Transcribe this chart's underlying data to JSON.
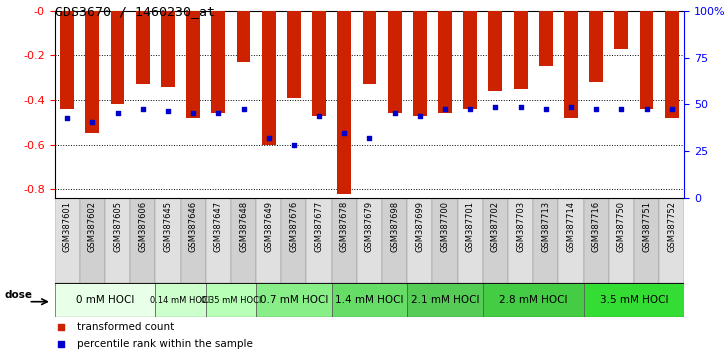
{
  "title": "GDS3670 / 1460230_at",
  "samples": [
    "GSM387601",
    "GSM387602",
    "GSM387605",
    "GSM387606",
    "GSM387645",
    "GSM387646",
    "GSM387647",
    "GSM387648",
    "GSM387649",
    "GSM387676",
    "GSM387677",
    "GSM387678",
    "GSM387679",
    "GSM387698",
    "GSM387699",
    "GSM387700",
    "GSM387701",
    "GSM387702",
    "GSM387703",
    "GSM387713",
    "GSM387714",
    "GSM387716",
    "GSM387750",
    "GSM387751",
    "GSM387752"
  ],
  "red_values": [
    -0.44,
    -0.55,
    -0.42,
    -0.33,
    -0.34,
    -0.48,
    -0.46,
    -0.23,
    -0.6,
    -0.39,
    -0.47,
    -0.82,
    -0.33,
    -0.46,
    -0.47,
    -0.46,
    -0.44,
    -0.36,
    -0.35,
    -0.25,
    -0.48,
    -0.32,
    -0.17,
    -0.44,
    -0.48
  ],
  "blue_values": [
    -0.48,
    -0.5,
    -0.46,
    -0.44,
    -0.45,
    -0.46,
    -0.46,
    -0.44,
    -0.57,
    -0.6,
    -0.47,
    -0.55,
    -0.57,
    -0.46,
    -0.47,
    -0.44,
    -0.44,
    -0.43,
    -0.43,
    -0.44,
    -0.43,
    -0.44,
    -0.44,
    -0.44,
    -0.44
  ],
  "dose_groups": [
    {
      "label": "0 mM HOCl",
      "start": 0,
      "end": 4,
      "color": "#e8ffe8"
    },
    {
      "label": "0.14 mM HOCl",
      "start": 4,
      "end": 6,
      "color": "#ccffcc"
    },
    {
      "label": "0.35 mM HOCl",
      "start": 6,
      "end": 8,
      "color": "#b0ffb0"
    },
    {
      "label": "0.7 mM HOCl",
      "start": 8,
      "end": 11,
      "color": "#88ee88"
    },
    {
      "label": "1.4 mM HOCl",
      "start": 11,
      "end": 14,
      "color": "#66dd66"
    },
    {
      "label": "2.1 mM HOCl",
      "start": 14,
      "end": 17,
      "color": "#44cc44"
    },
    {
      "label": "2.8 mM HOCl",
      "start": 17,
      "end": 21,
      "color": "#33bb33"
    },
    {
      "label": "3.5 mM HOCl",
      "start": 21,
      "end": 25,
      "color": "#22cc22"
    }
  ],
  "ylim_left": [
    -0.84,
    0.0
  ],
  "ylim_right": [
    0,
    100
  ],
  "yticks_left": [
    0.0,
    -0.2,
    -0.4,
    -0.6,
    -0.8
  ],
  "ytick_left_labels": [
    "-0",
    "-0.2",
    "-0.4",
    "-0.6",
    "-0.8"
  ],
  "yticks_right": [
    0,
    25,
    50,
    75,
    100
  ],
  "ytick_right_labels": [
    "0",
    "25",
    "50",
    "75",
    "100%"
  ],
  "bar_color": "#cc2200",
  "blue_color": "#0000cc",
  "bar_width": 0.55,
  "bg_color": "#ffffff",
  "plot_bg": "#ffffff",
  "xtick_bg_even": "#e0e0e0",
  "xtick_bg_odd": "#d0d0d0",
  "dose_label_fontsize": 7,
  "legend_labels": [
    "transformed count",
    "percentile rank within the sample"
  ],
  "legend_colors": [
    "#cc2200",
    "#0000cc"
  ]
}
